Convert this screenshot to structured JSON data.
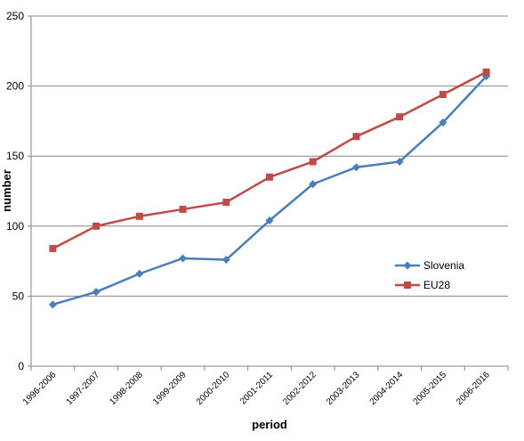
{
  "chart_data": {
    "type": "line",
    "title": "",
    "xlabel": "period",
    "ylabel": "number",
    "categories": [
      "1996-2006",
      "1997-2007",
      "1998-2008",
      "1999-2009",
      "2000-2010",
      "2001-2011",
      "2002-2012",
      "2003-2013",
      "2004-2014",
      "2005-2015",
      "2006-2016"
    ],
    "ylim": [
      0,
      250
    ],
    "yticks": [
      0,
      50,
      100,
      150,
      200,
      250
    ],
    "grid": true,
    "legend_position": "right",
    "series": [
      {
        "name": "Slovenia",
        "color": "#4a7ebb",
        "marker": "diamond",
        "values": [
          44,
          53,
          66,
          77,
          76,
          104,
          130,
          142,
          146,
          174,
          207
        ]
      },
      {
        "name": "EU28",
        "color": "#be4b48",
        "marker": "square",
        "values": [
          84,
          100,
          107,
          112,
          117,
          135,
          146,
          164,
          178,
          194,
          210
        ]
      }
    ]
  }
}
